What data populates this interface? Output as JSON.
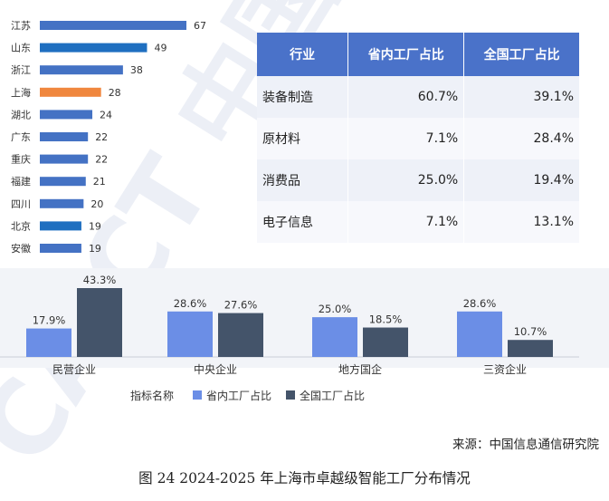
{
  "chart_data": [
    {
      "type": "bar",
      "orientation": "horizontal",
      "categories": [
        "江苏",
        "山东",
        "浙江",
        "上海",
        "湖北",
        "广东",
        "重庆",
        "福建",
        "四川",
        "北京",
        "安徽"
      ],
      "values": [
        67,
        49,
        38,
        28,
        24,
        22,
        22,
        21,
        20,
        19,
        19
      ],
      "bar_colors": [
        "#4472c4",
        "#1f6fc0",
        "#4472c4",
        "#f0873e",
        "#4472c4",
        "#4472c4",
        "#4472c4",
        "#4472c4",
        "#4472c4",
        "#1f6fc0",
        "#4472c4"
      ],
      "xlim": [
        0,
        70
      ]
    },
    {
      "type": "table",
      "headers": [
        "行业",
        "省内工厂占比",
        "全国工厂占比"
      ],
      "rows": [
        [
          "装备制造",
          "60.7%",
          "39.1%"
        ],
        [
          "原材料",
          "7.1%",
          "28.4%"
        ],
        [
          "消费品",
          "25.0%",
          "19.4%"
        ],
        [
          "电子信息",
          "7.1%",
          "13.1%"
        ]
      ]
    },
    {
      "type": "bar",
      "categories": [
        "民营企业",
        "中央企业",
        "地方国企",
        "三资企业"
      ],
      "series": [
        {
          "name": "省内工厂占比",
          "values": [
            17.9,
            28.6,
            25.0,
            28.6
          ],
          "labels": [
            "17.9%",
            "28.6%",
            "25.0%",
            "28.6%"
          ],
          "color": "#6b8ee6"
        },
        {
          "name": "全国工厂占比",
          "values": [
            43.3,
            27.6,
            18.5,
            10.7
          ],
          "labels": [
            "43.3%",
            "27.6%",
            "18.5%",
            "10.7%"
          ],
          "color": "#44546a"
        }
      ],
      "legend_title": "指标名称",
      "ylim": [
        0,
        45
      ]
    }
  ],
  "source": "来源：中国信息通信研究院",
  "caption": "图 24 2024-2025 年上海市卓越级智能工厂分布情况",
  "watermark": "CAICT 中国"
}
